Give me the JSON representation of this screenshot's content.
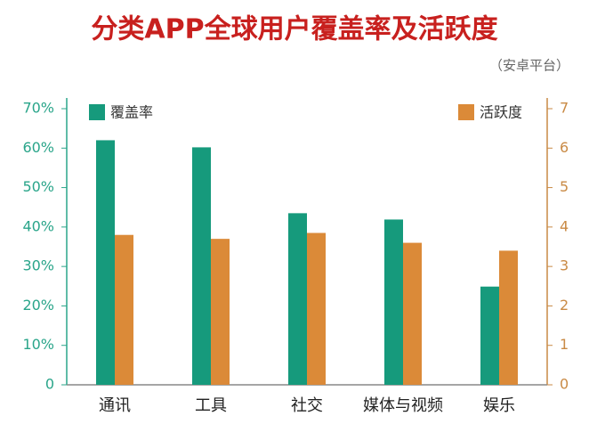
{
  "chart_data": {
    "type": "bar",
    "title": "分类APP全球用户覆盖率及活跃度",
    "subtitle": "（安卓平台）",
    "categories": [
      "通讯",
      "工具",
      "社交",
      "媒体与视频",
      "娱乐"
    ],
    "series": [
      {
        "name": "覆盖率",
        "color": "#169a7c",
        "values": [
          62,
          60.2,
          43.5,
          41.9,
          24.9
        ]
      },
      {
        "name": "活跃度",
        "color": "#db8a38",
        "axis": "y2",
        "values": [
          3.8,
          3.7,
          3.85,
          3.6,
          3.4
        ]
      }
    ],
    "ylim": [
      0,
      70
    ],
    "yticks": [
      0,
      {
        "value": 10,
        "label": "10%"
      },
      {
        "value": 20,
        "label": "20%"
      },
      {
        "value": 30,
        "label": "30%"
      },
      {
        "value": 40,
        "label": "40%"
      },
      {
        "value": 50,
        "label": "50%"
      },
      {
        "value": 60,
        "label": "60%"
      },
      {
        "value": 70,
        "label": "70%"
      }
    ],
    "y2lim": [
      0,
      7
    ],
    "y2ticks": [
      0,
      1,
      2,
      3,
      4,
      5,
      6,
      7
    ]
  }
}
